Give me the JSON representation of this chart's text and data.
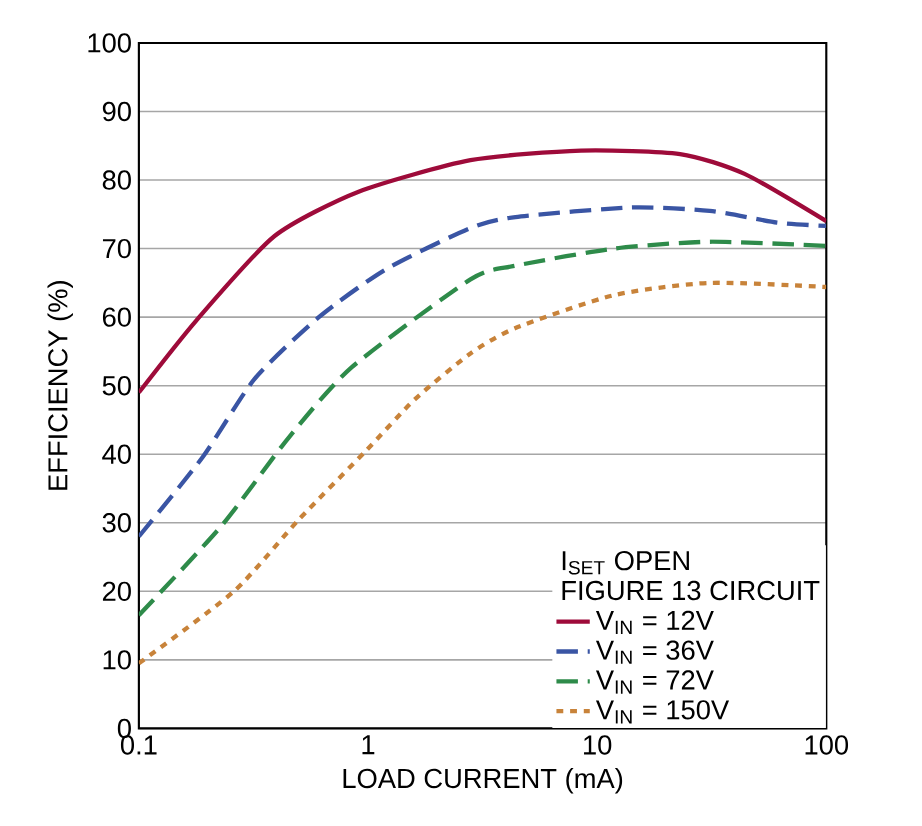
{
  "chart_data": {
    "type": "line",
    "xlabel": "LOAD CURRENT (mA)",
    "ylabel": "EFFICIENCY (%)",
    "legend_title": "I$_{SET}$ OPEN",
    "annotations": [
      "FIGURE 13 CIRCUIT"
    ],
    "log": "x",
    "xlim": [
      0.1,
      100
    ],
    "ylim": [
      0,
      100
    ],
    "xticks": [
      0.1,
      1,
      10,
      100
    ],
    "yticks": [
      0,
      10,
      20,
      30,
      40,
      50,
      60,
      70,
      80,
      90,
      100
    ],
    "grid": "y",
    "legend": "bottom right",
    "series": [
      {
        "name": "V$_{IN}$ = 12V",
        "color": "#9e0b3a",
        "line_style": "solid",
        "x": [
          0.1,
          0.178,
          0.39,
          0.91,
          2.8,
          8.5,
          23,
          44,
          100
        ],
        "values": [
          49,
          59.5,
          71.8,
          78.3,
          82.9,
          84.3,
          83.8,
          80.9,
          74
        ]
      },
      {
        "name": "V$_{IN}$ = 36V",
        "color": "#3a55a4",
        "line_style": "dashed",
        "x": [
          0.1,
          0.19,
          0.32,
          0.61,
          1.2,
          2.8,
          4.4,
          14,
          31,
          61,
          100
        ],
        "values": [
          28,
          39.6,
          51,
          60,
          67,
          73,
          74.6,
          76,
          75.5,
          73.8,
          73.3
        ]
      },
      {
        "name": "V$_{IN}$ = 72V",
        "color": "#2e8b4a",
        "line_style": "dashed",
        "x": [
          0.1,
          0.23,
          0.45,
          0.85,
          2.8,
          4.4,
          11.8,
          31,
          100
        ],
        "values": [
          16.5,
          29.6,
          42.4,
          52.7,
          65.5,
          67.5,
          70,
          71,
          70.4
        ]
      },
      {
        "name": "V$_{IN}$ = 150V",
        "color": "#c8833a",
        "line_style": "dotted",
        "x": [
          0.1,
          0.26,
          0.5,
          0.98,
          1.6,
          2.8,
          4.4,
          11.8,
          31,
          100
        ],
        "values": [
          9.5,
          20,
          30.5,
          40.5,
          48,
          54.7,
          58.4,
          63.2,
          65,
          64.4
        ]
      }
    ]
  }
}
